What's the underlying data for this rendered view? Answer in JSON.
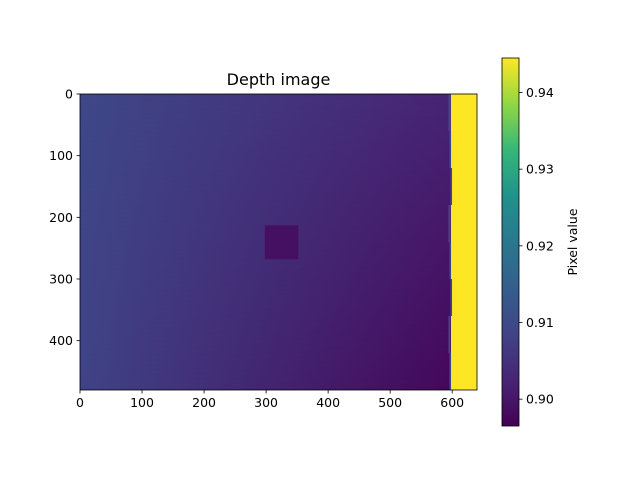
{
  "chart_data": {
    "type": "heatmap",
    "title": "Depth image",
    "xlabel": "",
    "ylabel": "",
    "xlim": [
      0,
      640
    ],
    "ylim": [
      480,
      0
    ],
    "x_ticks": [
      0,
      100,
      200,
      300,
      400,
      500,
      600
    ],
    "y_ticks": [
      0,
      100,
      200,
      300,
      400
    ],
    "colormap": "viridis",
    "colorbar": {
      "label": "Pixel value",
      "min": 0.8965,
      "max": 0.9445,
      "ticks": [
        "0.90",
        "0.91",
        "0.92",
        "0.93",
        "0.94"
      ]
    },
    "regions": [
      {
        "name": "background-gradient",
        "x_range": [
          0,
          598
        ],
        "y_range": [
          0,
          480
        ],
        "value_top_left": 0.9095,
        "value_top_right": 0.9025,
        "value_bottom_left": 0.9085,
        "value_bottom_right": 0.8975
      },
      {
        "name": "square-patch",
        "x_range": [
          298,
          352
        ],
        "y_range": [
          213,
          268
        ],
        "value": 0.899
      },
      {
        "name": "bright-strip",
        "x_range": [
          598,
          640
        ],
        "y_range": [
          0,
          480
        ],
        "value": 0.9445,
        "edge_value": 0.9095
      }
    ]
  }
}
